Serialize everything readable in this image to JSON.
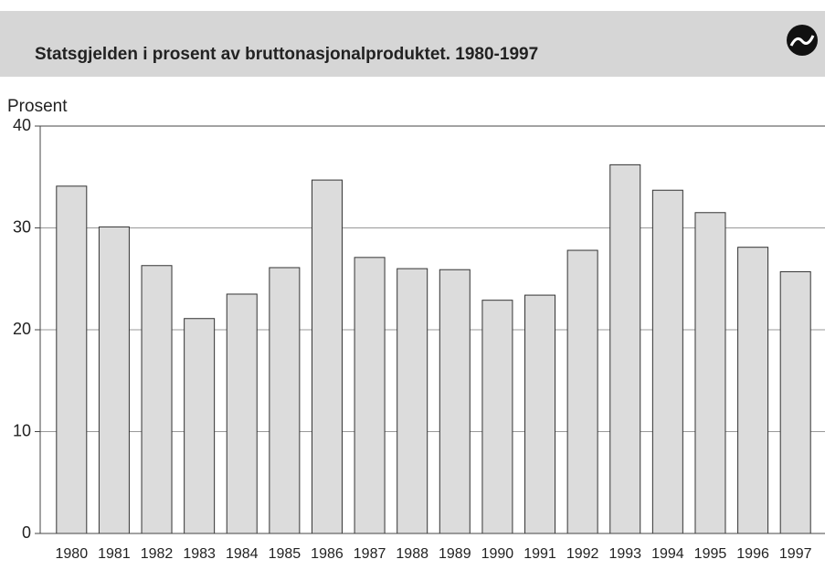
{
  "chart_data": {
    "type": "bar",
    "title": "Statsgjelden i prosent av bruttonasjonalproduktet. 1980-1997",
    "y_label": "Prosent",
    "categories": [
      "1980",
      "1981",
      "1982",
      "1983",
      "1984",
      "1985",
      "1986",
      "1987",
      "1988",
      "1989",
      "1990",
      "1991",
      "1992",
      "1993",
      "1994",
      "1995",
      "1996",
      "1997"
    ],
    "values": [
      34.1,
      30.1,
      26.3,
      21.1,
      23.5,
      26.1,
      34.7,
      27.1,
      26.0,
      25.9,
      22.9,
      23.4,
      27.8,
      36.2,
      33.7,
      31.5,
      28.1,
      25.7
    ],
    "color": "#dcdcdc",
    "ylim": [
      0,
      40
    ],
    "yticks": [
      0,
      10,
      20,
      30,
      40
    ],
    "grid": true
  }
}
